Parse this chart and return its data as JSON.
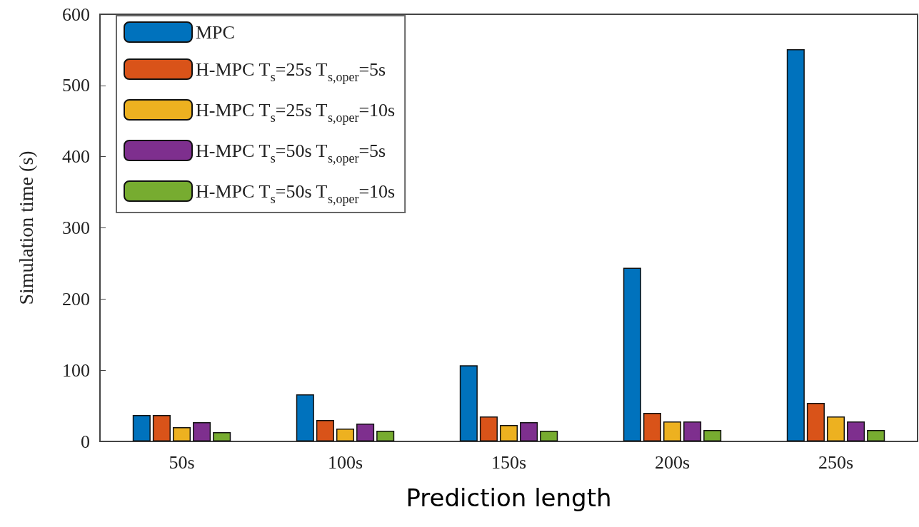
{
  "chart_data": {
    "type": "bar",
    "xlabel": "Prediction length",
    "ylabel": "Simulation time (s)",
    "categories": [
      "50s",
      "100s",
      "150s",
      "200s",
      "250s"
    ],
    "series": [
      {
        "name": "MPC",
        "color": "#0072bd",
        "values": [
          37,
          66,
          107,
          244,
          551
        ]
      },
      {
        "name": "H-MPC T$_{s}$=25s T$_{s,oper}$=5s",
        "color": "#d95319",
        "values": [
          37,
          30,
          35,
          40,
          54
        ]
      },
      {
        "name": "H-MPC T$_{s}$=25s T$_{s,oper}$=10s",
        "color": "#edb120",
        "values": [
          20,
          18,
          23,
          28,
          35
        ]
      },
      {
        "name": "H-MPC T$_{s}$=50s T$_{s,oper}$=5s",
        "color": "#7e2f8e",
        "values": [
          27,
          25,
          27,
          28,
          28
        ]
      },
      {
        "name": "H-MPC T$_{s}$=50s T$_{s,oper}$=10s",
        "color": "#77ac30",
        "values": [
          13,
          15,
          15,
          16,
          16
        ]
      }
    ],
    "ylim": [
      0,
      600
    ],
    "yticks": [
      0,
      100,
      200,
      300,
      400,
      500,
      600
    ],
    "grid": false,
    "legend": "top left"
  }
}
